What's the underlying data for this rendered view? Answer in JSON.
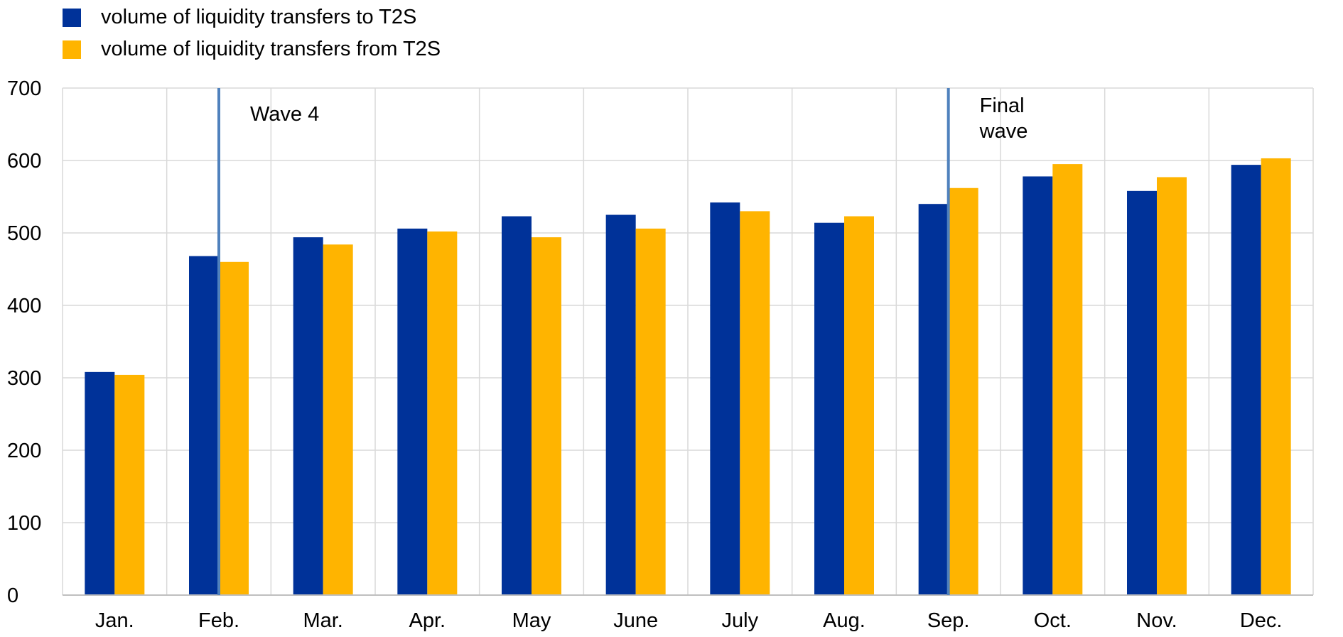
{
  "chart_data": {
    "type": "bar",
    "categories": [
      "Jan.",
      "Feb.",
      "Mar.",
      "Apr.",
      "May",
      "June",
      "July",
      "Aug.",
      "Sep.",
      "Oct.",
      "Nov.",
      "Dec."
    ],
    "series": [
      {
        "name": "volume of liquidity transfers to T2S",
        "color": "#003299",
        "values": [
          308,
          468,
          494,
          506,
          523,
          525,
          542,
          514,
          540,
          578,
          558,
          594
        ]
      },
      {
        "name": "volume of liquidity transfers from T2S",
        "color": "#FFB400",
        "values": [
          304,
          460,
          484,
          502,
          494,
          506,
          530,
          523,
          562,
          595,
          577,
          603
        ]
      }
    ],
    "ylim": [
      0,
      700
    ],
    "yticks": [
      0,
      100,
      200,
      300,
      400,
      500,
      600,
      700
    ],
    "grid": true,
    "legend_position": "top-left",
    "annotations": [
      {
        "category": "Feb.",
        "lines": [
          "Wave 4"
        ]
      },
      {
        "category": "Sep.",
        "lines": [
          "Final",
          "wave"
        ]
      }
    ],
    "marker_line_color": "#4f81bd"
  }
}
